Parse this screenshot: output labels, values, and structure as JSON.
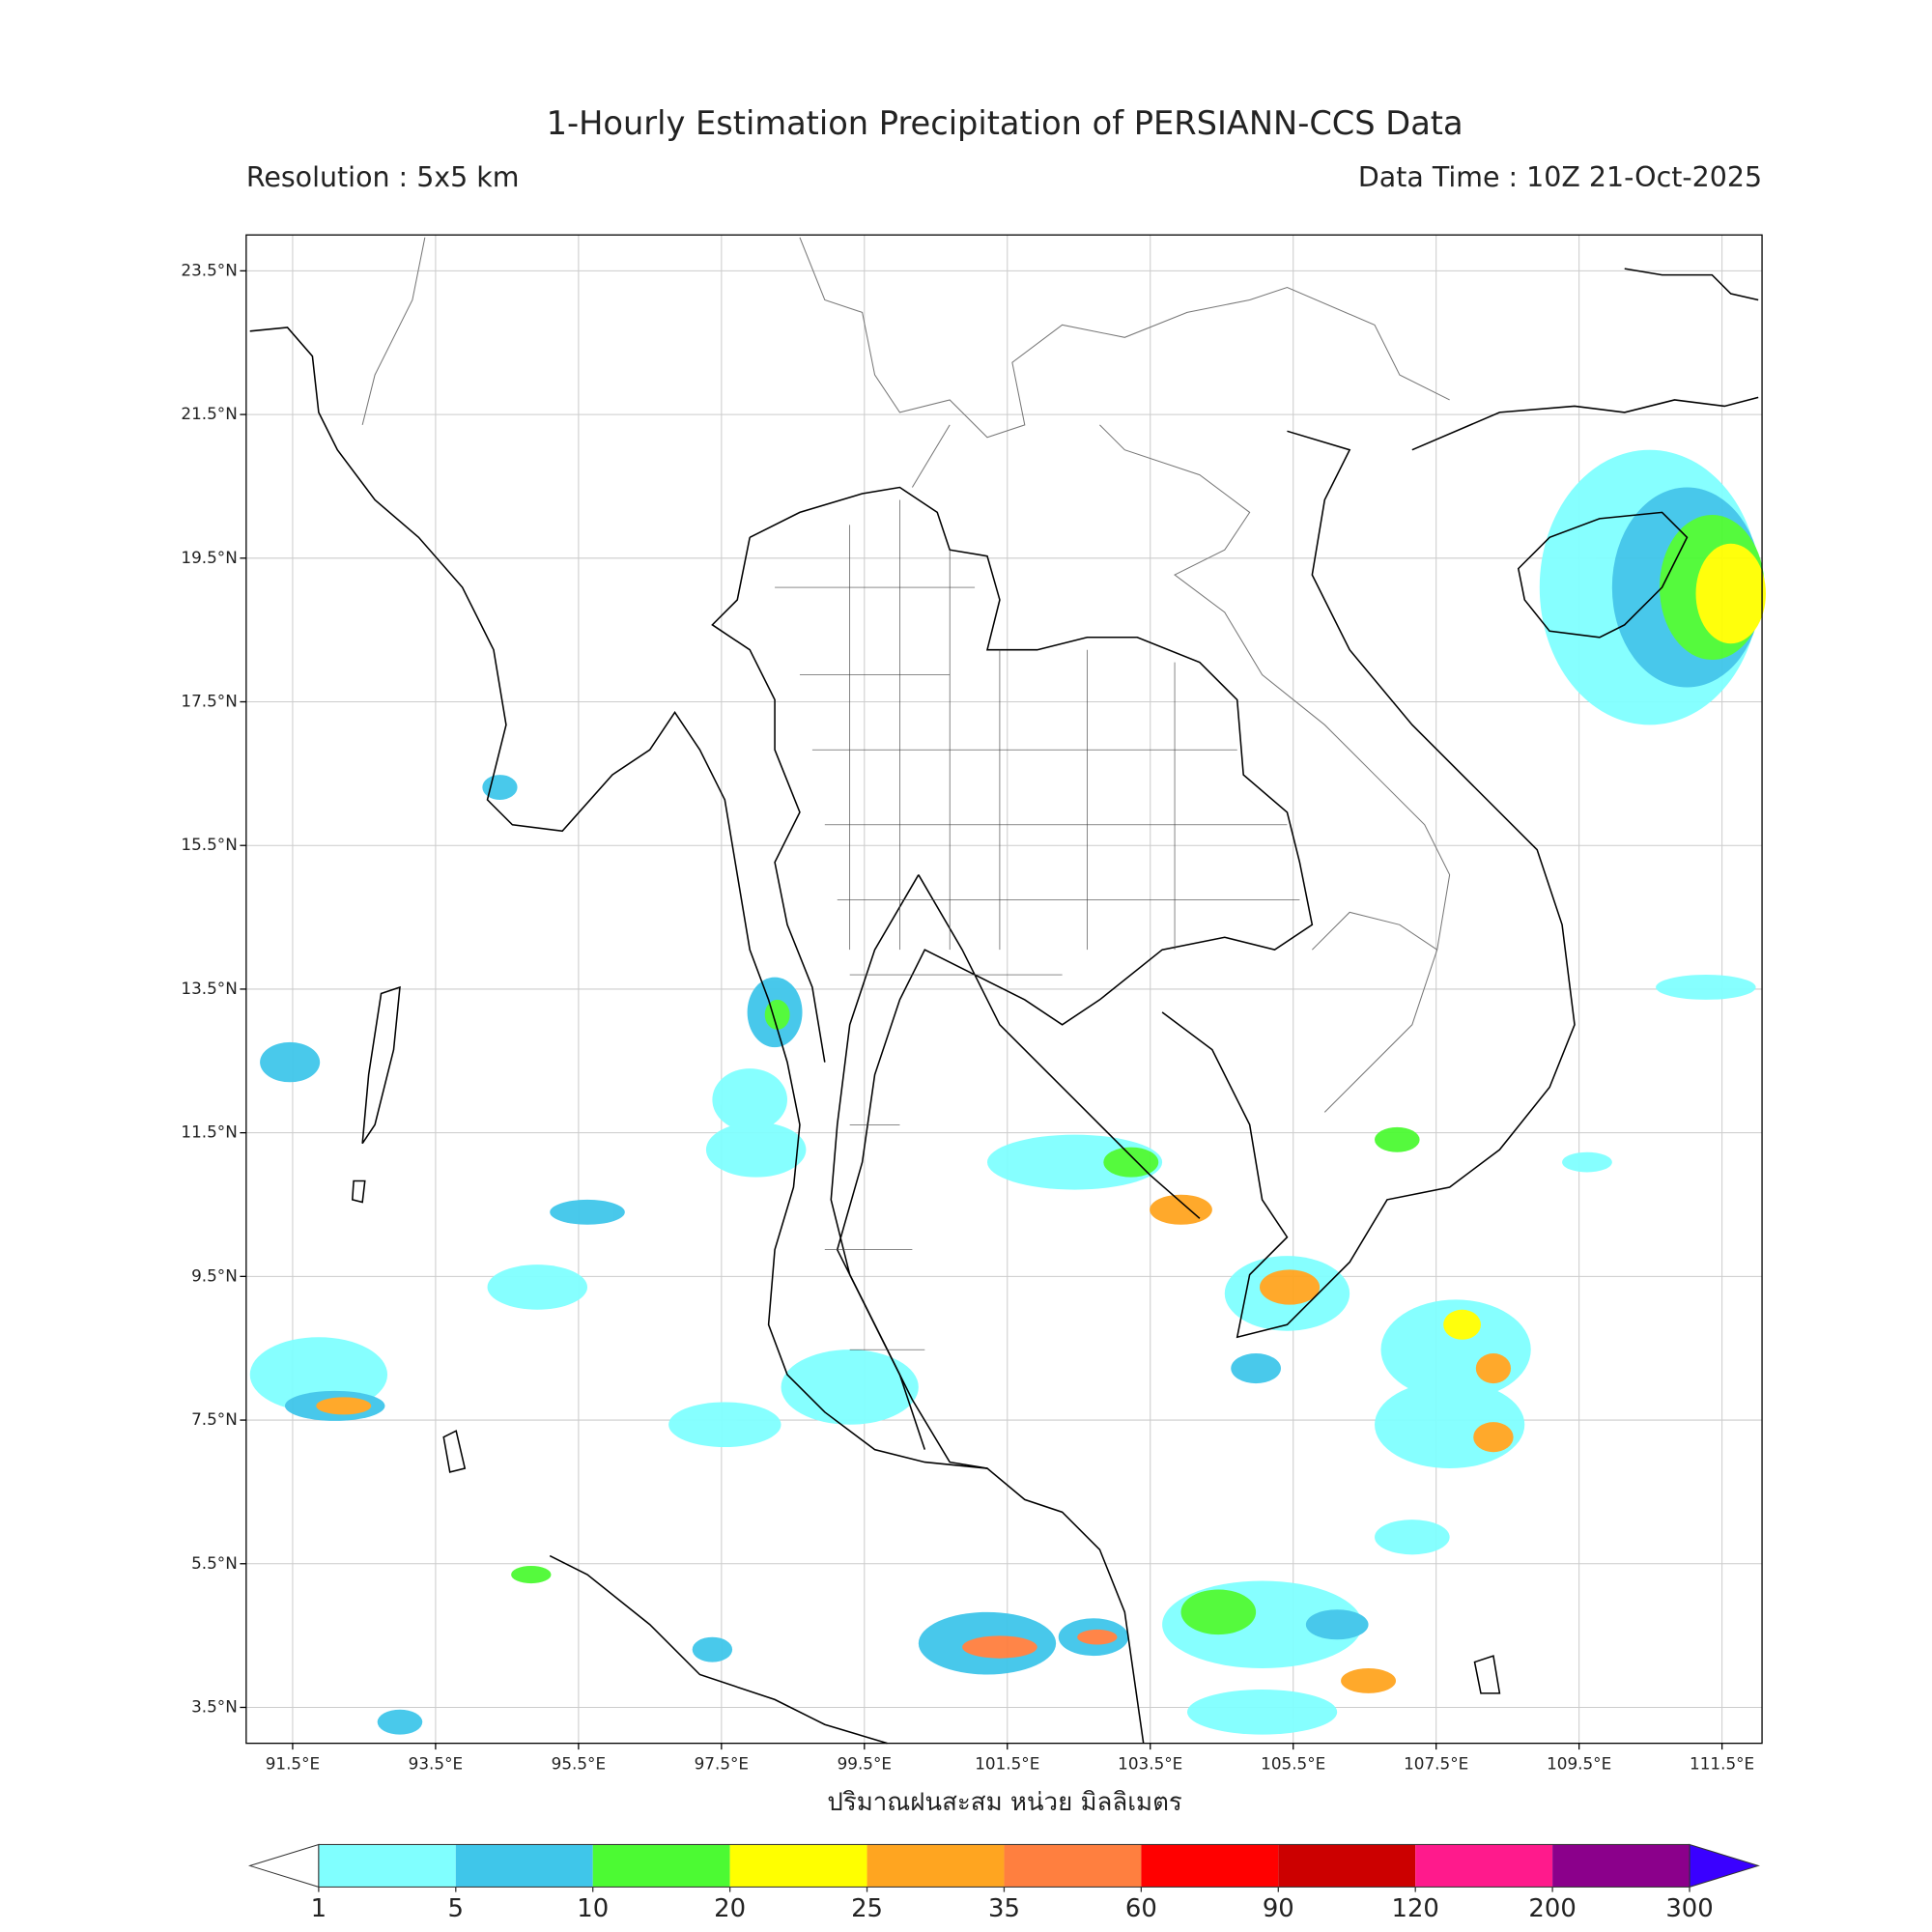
{
  "header": {
    "title": "1-Hourly Estimation Precipitation of PERSIANN-CCS Data",
    "resolution": "Resolution : 5x5 km",
    "data_time": "Data Time : 10Z 21-Oct-2025"
  },
  "map": {
    "xlim": [
      90.85,
      112.06
    ],
    "ylim": [
      3.0,
      24.0
    ],
    "grid": true,
    "xticks": [
      {
        "value": 91.5,
        "label": "91.5°E"
      },
      {
        "value": 93.5,
        "label": "93.5°E"
      },
      {
        "value": 95.5,
        "label": "95.5°E"
      },
      {
        "value": 97.5,
        "label": "97.5°E"
      },
      {
        "value": 99.5,
        "label": "99.5°E"
      },
      {
        "value": 101.5,
        "label": "101.5°E"
      },
      {
        "value": 103.5,
        "label": "103.5°E"
      },
      {
        "value": 105.5,
        "label": "105.5°E"
      },
      {
        "value": 107.5,
        "label": "107.5°E"
      },
      {
        "value": 109.5,
        "label": "109.5°E"
      },
      {
        "value": 111.5,
        "label": "111.5°E"
      }
    ],
    "yticks": [
      {
        "value": 23.5,
        "label": "23.5°N"
      },
      {
        "value": 21.5,
        "label": "21.5°N"
      },
      {
        "value": 19.5,
        "label": "19.5°N"
      },
      {
        "value": 17.5,
        "label": "17.5°N"
      },
      {
        "value": 15.5,
        "label": "15.5°N"
      },
      {
        "value": 13.5,
        "label": "13.5°N"
      },
      {
        "value": 11.5,
        "label": "11.5°N"
      },
      {
        "value": 9.5,
        "label": "9.5°N"
      },
      {
        "value": 7.5,
        "label": "7.5°N"
      },
      {
        "value": 5.5,
        "label": "5.5°N"
      },
      {
        "value": 3.5,
        "label": "3.5°N"
      }
    ],
    "xlabel": "ปริมาณฝนสะสม หน่วย มิลลิเมตร"
  },
  "colorbar": {
    "levels": [
      1,
      5,
      10,
      20,
      25,
      35,
      60,
      90,
      120,
      200,
      300
    ],
    "colors": [
      "#80ffff",
      "#3fc6ea",
      "#4cfa33",
      "#ffff00",
      "#ffa520",
      "#ff7f3f",
      "#ff0000",
      "#cc0000",
      "#ff1a8c",
      "#8b008b"
    ],
    "under_color": "#ffffff",
    "over_color": "#3a00ff"
  }
}
